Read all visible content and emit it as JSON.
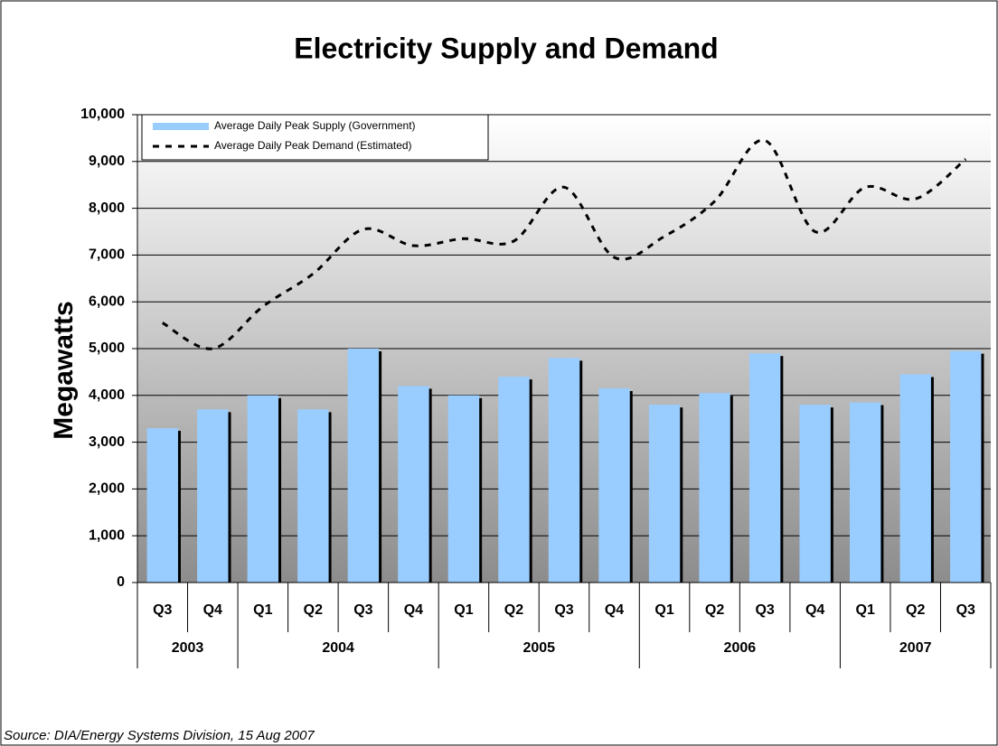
{
  "chart_data": {
    "type": "bar_line",
    "title": "Electricity Supply and Demand",
    "y_label": "Megawatts",
    "source": "Source: DIA/Energy Systems Division, 15 Aug 2007",
    "categories": [
      "Q3",
      "Q4",
      "Q1",
      "Q2",
      "Q3",
      "Q4",
      "Q1",
      "Q2",
      "Q3",
      "Q4",
      "Q1",
      "Q2",
      "Q3",
      "Q4",
      "Q1",
      "Q2",
      "Q3"
    ],
    "year_groups": [
      {
        "name": "2003",
        "count": 2
      },
      {
        "name": "2004",
        "count": 4
      },
      {
        "name": "2005",
        "count": 4
      },
      {
        "name": "2006",
        "count": 4
      },
      {
        "name": "2007",
        "count": 3
      }
    ],
    "series": [
      {
        "name": "Average Daily Peak Supply (Government)",
        "type": "bar",
        "color": "#99ccff",
        "values": [
          3300,
          3700,
          4000,
          3700,
          5000,
          4200,
          4000,
          4400,
          4800,
          4150,
          3800,
          4050,
          4900,
          3800,
          3850,
          4450,
          4950
        ]
      },
      {
        "name": "Average Daily Peak Demand (Estimated)",
        "type": "line",
        "color": "#000000",
        "values": [
          5550,
          5000,
          5900,
          6600,
          7550,
          7200,
          7350,
          7300,
          8450,
          6950,
          7400,
          8150,
          9450,
          7500,
          8450,
          8200,
          9050
        ]
      }
    ],
    "ylim": [
      0,
      10000
    ],
    "yticks": [
      0,
      {
        "value": 1000,
        "label": "1,000"
      },
      {
        "value": 2000,
        "label": "2,000"
      },
      {
        "value": 3000,
        "label": "3,000"
      },
      {
        "value": 4000,
        "label": "4,000"
      },
      {
        "value": 5000,
        "label": "5,000"
      },
      {
        "value": 6000,
        "label": "6,000"
      },
      {
        "value": 7000,
        "label": "7,000"
      },
      {
        "value": 8000,
        "label": "8,000"
      },
      {
        "value": 9000,
        "label": "9,000"
      },
      {
        "value": 10000,
        "label": "10,000"
      }
    ],
    "grid": true,
    "legend": "top-left"
  }
}
